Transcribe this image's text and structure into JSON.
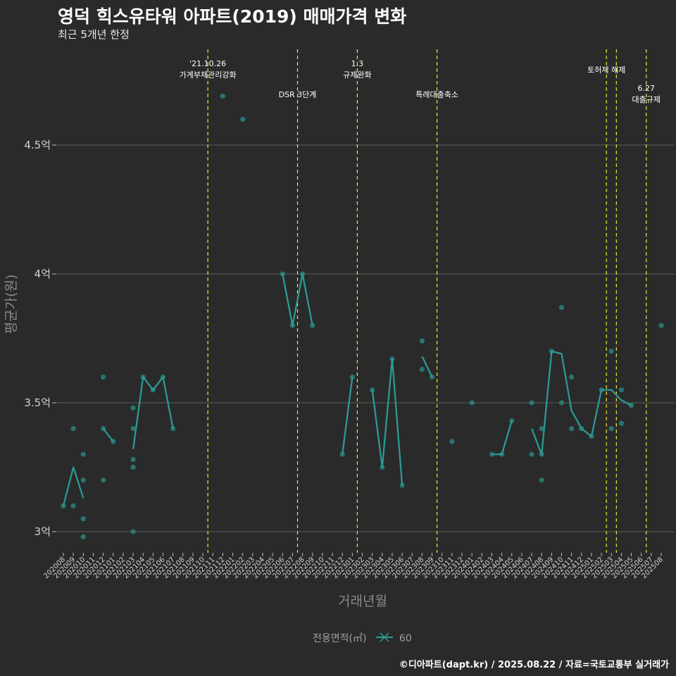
{
  "chart_data": {
    "type": "line",
    "title": "영덕 힉스유타워 아파트(2019) 매매가격 변화",
    "subtitle": "최근 5개년 한정",
    "xlabel": "거래년월",
    "ylabel": "평균가(원)",
    "caption": "©디아파트(dapt.kr) / 2025.08.22 / 자료=국토교통부 실거래가",
    "ylim": [
      2.9,
      4.9
    ],
    "yticks": [
      {
        "value": 3.0,
        "label": "3억"
      },
      {
        "value": 3.5,
        "label": "3.5억"
      },
      {
        "value": 4.0,
        "label": "4억"
      },
      {
        "value": 4.5,
        "label": "4.5억"
      }
    ],
    "categories": [
      "202008",
      "202009",
      "202010",
      "202011",
      "202012",
      "202101",
      "202102",
      "202103",
      "202104",
      "202105",
      "202106",
      "202107",
      "202108",
      "202109",
      "202110",
      "202111",
      "202112",
      "202201",
      "202202",
      "202203",
      "202204",
      "202205",
      "202206",
      "202207",
      "202208",
      "202209",
      "202210",
      "202211",
      "202212",
      "202301",
      "202302",
      "202303",
      "202304",
      "202305",
      "202306",
      "202307",
      "202308",
      "202309",
      "202310",
      "202311",
      "202312",
      "202401",
      "202402",
      "202403",
      "202404",
      "202405",
      "202406",
      "202407",
      "202408",
      "202409",
      "202410",
      "202411",
      "202412",
      "202501",
      "202502",
      "202503",
      "202504",
      "202505",
      "202506",
      "202507",
      "202508"
    ],
    "legend": {
      "title": "전용면적(㎡)",
      "entries": [
        "60"
      ],
      "color": "#2a9d96"
    },
    "series": [
      {
        "name": "60",
        "line_segments": [
          [
            [
              0,
              3.1
            ],
            [
              1,
              3.25
            ],
            [
              2,
              3.13
            ]
          ],
          [
            [
              4,
              3.4
            ],
            [
              5,
              3.35
            ]
          ],
          [
            [
              7,
              3.32
            ],
            [
              8,
              3.6
            ],
            [
              9,
              3.55
            ],
            [
              10,
              3.6
            ],
            [
              11,
              3.4
            ]
          ],
          [
            [
              22,
              4.0
            ],
            [
              23,
              3.8
            ],
            [
              24,
              4.0
            ],
            [
              25,
              3.8
            ]
          ],
          [
            [
              28,
              3.3
            ],
            [
              29,
              3.6
            ]
          ],
          [
            [
              31,
              3.55
            ],
            [
              32,
              3.25
            ],
            [
              33,
              3.67
            ],
            [
              34,
              3.18
            ]
          ],
          [
            [
              36,
              3.68
            ],
            [
              37,
              3.6
            ]
          ],
          [
            [
              43,
              3.3
            ],
            [
              44,
              3.3
            ],
            [
              45,
              3.43
            ]
          ],
          [
            [
              47,
              3.4
            ],
            [
              48,
              3.3
            ],
            [
              49,
              3.7
            ],
            [
              50,
              3.69
            ],
            [
              51,
              3.47
            ],
            [
              52,
              3.4
            ],
            [
              53,
              3.37
            ],
            [
              54,
              3.55
            ],
            [
              55,
              3.55
            ],
            [
              56,
              3.51
            ],
            [
              57,
              3.49
            ]
          ]
        ]
      }
    ],
    "points": [
      [
        0,
        3.1
      ],
      [
        1,
        3.4
      ],
      [
        1,
        3.1
      ],
      [
        2,
        3.3
      ],
      [
        2,
        3.2
      ],
      [
        2,
        3.05
      ],
      [
        2,
        2.98
      ],
      [
        4,
        3.6
      ],
      [
        4,
        3.4
      ],
      [
        4,
        3.2
      ],
      [
        5,
        3.35
      ],
      [
        7,
        3.48
      ],
      [
        7,
        3.4
      ],
      [
        7,
        3.28
      ],
      [
        7,
        3.25
      ],
      [
        7,
        3.0
      ],
      [
        8,
        3.6
      ],
      [
        9,
        3.55
      ],
      [
        10,
        3.6
      ],
      [
        11,
        3.4
      ],
      [
        16,
        4.69
      ],
      [
        18,
        4.6
      ],
      [
        22,
        4.0
      ],
      [
        23,
        3.8
      ],
      [
        24,
        4.0
      ],
      [
        25,
        3.8
      ],
      [
        28,
        3.3
      ],
      [
        29,
        3.6
      ],
      [
        31,
        3.55
      ],
      [
        32,
        3.25
      ],
      [
        33,
        3.67
      ],
      [
        34,
        3.18
      ],
      [
        36,
        3.74
      ],
      [
        36,
        3.63
      ],
      [
        37,
        3.6
      ],
      [
        39,
        3.35
      ],
      [
        41,
        3.5
      ],
      [
        43,
        3.3
      ],
      [
        44,
        3.3
      ],
      [
        45,
        3.43
      ],
      [
        47,
        3.5
      ],
      [
        47,
        3.3
      ],
      [
        48,
        3.4
      ],
      [
        48,
        3.3
      ],
      [
        48,
        3.2
      ],
      [
        49,
        3.7
      ],
      [
        50,
        3.87
      ],
      [
        50,
        3.5
      ],
      [
        51,
        3.6
      ],
      [
        51,
        3.4
      ],
      [
        52,
        3.4
      ],
      [
        53,
        3.37
      ],
      [
        54,
        3.55
      ],
      [
        55,
        3.7
      ],
      [
        55,
        3.4
      ],
      [
        56,
        3.55
      ],
      [
        56,
        3.42
      ],
      [
        57,
        3.49
      ],
      [
        60,
        3.8
      ]
    ],
    "events": [
      {
        "x": 14.5,
        "label": [
          "'21.10.26",
          "가계부채관리강화"
        ],
        "level": "high"
      },
      {
        "x": 23.5,
        "label": [
          "DSR 3단계"
        ],
        "level": "low"
      },
      {
        "x": 29.5,
        "label": [
          "1.3",
          "규제완화"
        ],
        "level": "high"
      },
      {
        "x": 37.5,
        "label": [
          "특례대출축소"
        ],
        "level": "low"
      },
      {
        "x": 54.5,
        "label": [
          "토허제 해제"
        ],
        "level": "mid"
      },
      {
        "x": 55.5,
        "label": [],
        "level": "none"
      },
      {
        "x": 58.5,
        "label": [
          "6.27",
          "대출규제"
        ],
        "level": "lowright"
      }
    ]
  }
}
